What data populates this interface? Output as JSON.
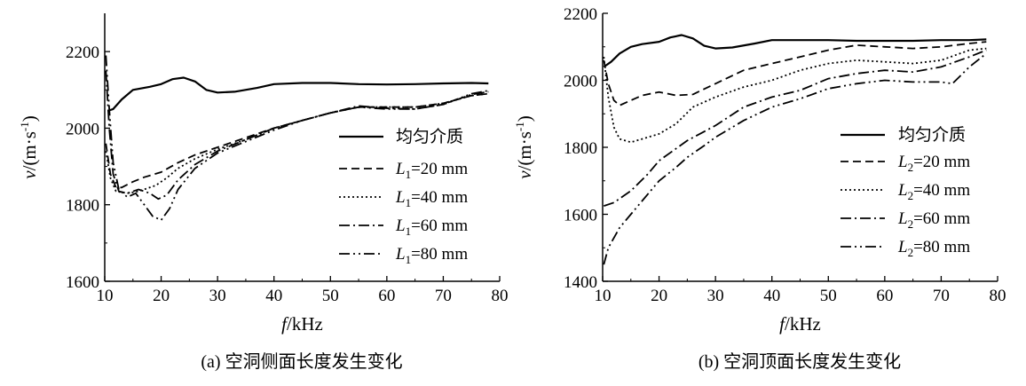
{
  "chart_data": [
    {
      "type": "line",
      "caption": "(a) 空洞侧面长度发生变化",
      "xlabel_var": "f",
      "xlabel_unit": "/kHz",
      "ylabel_var": "v",
      "ylabel_unit": "/(m·s",
      "ylabel_sup": "-1",
      "ylabel_close": ")",
      "xlim": [
        10,
        80
      ],
      "ylim": [
        1600,
        2300
      ],
      "xticks": [
        "10",
        "20",
        "30",
        "40",
        "50",
        "60",
        "70",
        "80"
      ],
      "yticks": [
        "1600",
        "1800",
        "2000",
        "2200"
      ],
      "legend_position": "right",
      "series": [
        {
          "name": "均匀介质",
          "var": "",
          "sub": "",
          "value": "",
          "dash": "solid",
          "points": [
            [
              10.5,
              2045
            ],
            [
              11.5,
              2050
            ],
            [
              13,
              2075
            ],
            [
              15,
              2100
            ],
            [
              18,
              2108
            ],
            [
              20,
              2115
            ],
            [
              22,
              2128
            ],
            [
              24,
              2132
            ],
            [
              26,
              2122
            ],
            [
              28,
              2100
            ],
            [
              30,
              2093
            ],
            [
              33,
              2095
            ],
            [
              37,
              2105
            ],
            [
              40,
              2115
            ],
            [
              45,
              2118
            ],
            [
              50,
              2118
            ],
            [
              55,
              2115
            ],
            [
              60,
              2114
            ],
            [
              65,
              2115
            ],
            [
              70,
              2117
            ],
            [
              75,
              2118
            ],
            [
              78,
              2117
            ]
          ]
        },
        {
          "name": "",
          "var": "L",
          "sub": "1",
          "value": "=20 mm",
          "dash": "dashed",
          "points": [
            [
              10.2,
              1960
            ],
            [
              11,
              1880
            ],
            [
              12,
              1845
            ],
            [
              13,
              1845
            ],
            [
              15,
              1860
            ],
            [
              17,
              1872
            ],
            [
              20,
              1885
            ],
            [
              23,
              1910
            ],
            [
              26,
              1930
            ],
            [
              30,
              1950
            ],
            [
              35,
              1975
            ],
            [
              40,
              2000
            ],
            [
              45,
              2020
            ],
            [
              50,
              2040
            ],
            [
              55,
              2055
            ],
            [
              60,
              2055
            ],
            [
              65,
              2055
            ],
            [
              70,
              2065
            ],
            [
              75,
              2085
            ],
            [
              78,
              2090
            ]
          ]
        },
        {
          "name": "",
          "var": "L",
          "sub": "1",
          "value": "=40 mm",
          "dash": "dotted",
          "points": [
            [
              10.2,
              1940
            ],
            [
              11,
              1870
            ],
            [
              12,
              1835
            ],
            [
              14,
              1830
            ],
            [
              16,
              1835
            ],
            [
              19,
              1850
            ],
            [
              21,
              1870
            ],
            [
              23,
              1895
            ],
            [
              26,
              1920
            ],
            [
              30,
              1945
            ],
            [
              35,
              1970
            ],
            [
              40,
              2000
            ],
            [
              45,
              2020
            ],
            [
              50,
              2040
            ],
            [
              55,
              2055
            ],
            [
              60,
              2055
            ],
            [
              65,
              2055
            ],
            [
              70,
              2065
            ],
            [
              75,
              2085
            ],
            [
              78,
              2090
            ]
          ]
        },
        {
          "name": "",
          "var": "L",
          "sub": "1",
          "value": "=60 mm",
          "dash": "dashdot",
          "points": [
            [
              10.2,
              2150
            ],
            [
              10.8,
              2000
            ],
            [
              11.5,
              1880
            ],
            [
              12.5,
              1835
            ],
            [
              14,
              1830
            ],
            [
              16,
              1840
            ],
            [
              18,
              1830
            ],
            [
              19.5,
              1815
            ],
            [
              21,
              1825
            ],
            [
              23,
              1865
            ],
            [
              26,
              1905
            ],
            [
              30,
              1940
            ],
            [
              35,
              1970
            ],
            [
              40,
              2000
            ],
            [
              45,
              2020
            ],
            [
              50,
              2040
            ],
            [
              55,
              2058
            ],
            [
              60,
              2052
            ],
            [
              65,
              2050
            ],
            [
              70,
              2062
            ],
            [
              75,
              2088
            ],
            [
              78,
              2095
            ]
          ]
        },
        {
          "name": "",
          "var": "L",
          "sub": "1",
          "value": "=80 mm",
          "dash": "dashdotdot",
          "points": [
            [
              10.2,
              2190
            ],
            [
              10.8,
              2050
            ],
            [
              11.5,
              1910
            ],
            [
              12.5,
              1840
            ],
            [
              14,
              1820
            ],
            [
              15.5,
              1830
            ],
            [
              17,
              1800
            ],
            [
              18.5,
              1770
            ],
            [
              20,
              1760
            ],
            [
              21.5,
              1790
            ],
            [
              23,
              1840
            ],
            [
              26,
              1895
            ],
            [
              30,
              1935
            ],
            [
              35,
              1965
            ],
            [
              40,
              1995
            ],
            [
              45,
              2020
            ],
            [
              50,
              2040
            ],
            [
              55,
              2055
            ],
            [
              60,
              2050
            ],
            [
              65,
              2050
            ],
            [
              70,
              2062
            ],
            [
              75,
              2090
            ],
            [
              78,
              2098
            ]
          ]
        }
      ]
    },
    {
      "type": "line",
      "caption": "(b) 空洞顶面长度发生变化",
      "xlabel_var": "f",
      "xlabel_unit": "/kHz",
      "ylabel_var": "v",
      "ylabel_unit": "/(m·s",
      "ylabel_sup": "-1",
      "ylabel_close": ")",
      "xlim": [
        10,
        80
      ],
      "ylim": [
        1400,
        2200
      ],
      "xticks": [
        "10",
        "20",
        "30",
        "40",
        "50",
        "60",
        "70",
        "80"
      ],
      "yticks": [
        "1400",
        "1600",
        "1800",
        "2000",
        "2200"
      ],
      "legend_position": "right",
      "series": [
        {
          "name": "均匀介质",
          "var": "",
          "sub": "",
          "value": "",
          "dash": "solid",
          "points": [
            [
              10.2,
              2040
            ],
            [
              11.5,
              2055
            ],
            [
              13,
              2080
            ],
            [
              15,
              2100
            ],
            [
              17,
              2108
            ],
            [
              20,
              2115
            ],
            [
              22,
              2128
            ],
            [
              24,
              2135
            ],
            [
              26,
              2125
            ],
            [
              28,
              2103
            ],
            [
              30,
              2095
            ],
            [
              33,
              2098
            ],
            [
              37,
              2110
            ],
            [
              40,
              2120
            ],
            [
              45,
              2120
            ],
            [
              50,
              2120
            ],
            [
              55,
              2118
            ],
            [
              60,
              2118
            ],
            [
              65,
              2118
            ],
            [
              70,
              2120
            ],
            [
              75,
              2120
            ],
            [
              78,
              2122
            ]
          ]
        },
        {
          "name": "",
          "var": "L",
          "sub": "2",
          "value": "=20 mm",
          "dash": "dashed",
          "points": [
            [
              10.2,
              2060
            ],
            [
              11,
              1990
            ],
            [
              12,
              1940
            ],
            [
              13,
              1925
            ],
            [
              15,
              1940
            ],
            [
              17,
              1955
            ],
            [
              20,
              1965
            ],
            [
              23,
              1955
            ],
            [
              26,
              1958
            ],
            [
              30,
              1990
            ],
            [
              35,
              2030
            ],
            [
              40,
              2050
            ],
            [
              45,
              2070
            ],
            [
              50,
              2090
            ],
            [
              55,
              2105
            ],
            [
              60,
              2100
            ],
            [
              65,
              2095
            ],
            [
              70,
              2100
            ],
            [
              75,
              2110
            ],
            [
              78,
              2115
            ]
          ]
        },
        {
          "name": "",
          "var": "L",
          "sub": "2",
          "value": "=40 mm",
          "dash": "dotted",
          "points": [
            [
              10.2,
              2070
            ],
            [
              11,
              1950
            ],
            [
              12,
              1860
            ],
            [
              13,
              1825
            ],
            [
              15,
              1815
            ],
            [
              17,
              1825
            ],
            [
              20,
              1840
            ],
            [
              23,
              1870
            ],
            [
              26,
              1920
            ],
            [
              30,
              1950
            ],
            [
              35,
              1980
            ],
            [
              40,
              2000
            ],
            [
              45,
              2030
            ],
            [
              50,
              2050
            ],
            [
              55,
              2060
            ],
            [
              60,
              2055
            ],
            [
              65,
              2050
            ],
            [
              70,
              2060
            ],
            [
              75,
              2090
            ],
            [
              78,
              2095
            ]
          ]
        },
        {
          "name": "",
          "var": "L",
          "sub": "2",
          "value": "=60 mm",
          "dash": "dashdot",
          "points": [
            [
              10.2,
              1625
            ],
            [
              12,
              1635
            ],
            [
              15,
              1670
            ],
            [
              18,
              1720
            ],
            [
              20,
              1760
            ],
            [
              25,
              1820
            ],
            [
              30,
              1865
            ],
            [
              35,
              1920
            ],
            [
              40,
              1950
            ],
            [
              45,
              1970
            ],
            [
              50,
              2005
            ],
            [
              55,
              2020
            ],
            [
              60,
              2030
            ],
            [
              65,
              2025
            ],
            [
              70,
              2040
            ],
            [
              75,
              2070
            ],
            [
              78,
              2090
            ]
          ]
        },
        {
          "name": "",
          "var": "L",
          "sub": "2",
          "value": "=80 mm",
          "dash": "dashdotdot",
          "points": [
            [
              10.2,
              1450
            ],
            [
              11,
              1500
            ],
            [
              13,
              1560
            ],
            [
              15,
              1600
            ],
            [
              18,
              1660
            ],
            [
              20,
              1700
            ],
            [
              23,
              1740
            ],
            [
              25,
              1770
            ],
            [
              28,
              1805
            ],
            [
              30,
              1830
            ],
            [
              35,
              1880
            ],
            [
              40,
              1920
            ],
            [
              45,
              1945
            ],
            [
              50,
              1975
            ],
            [
              55,
              1990
            ],
            [
              60,
              2000
            ],
            [
              65,
              1995
            ],
            [
              70,
              1995
            ],
            [
              72,
              1990
            ],
            [
              75,
              2040
            ],
            [
              78,
              2080
            ]
          ]
        }
      ]
    }
  ]
}
